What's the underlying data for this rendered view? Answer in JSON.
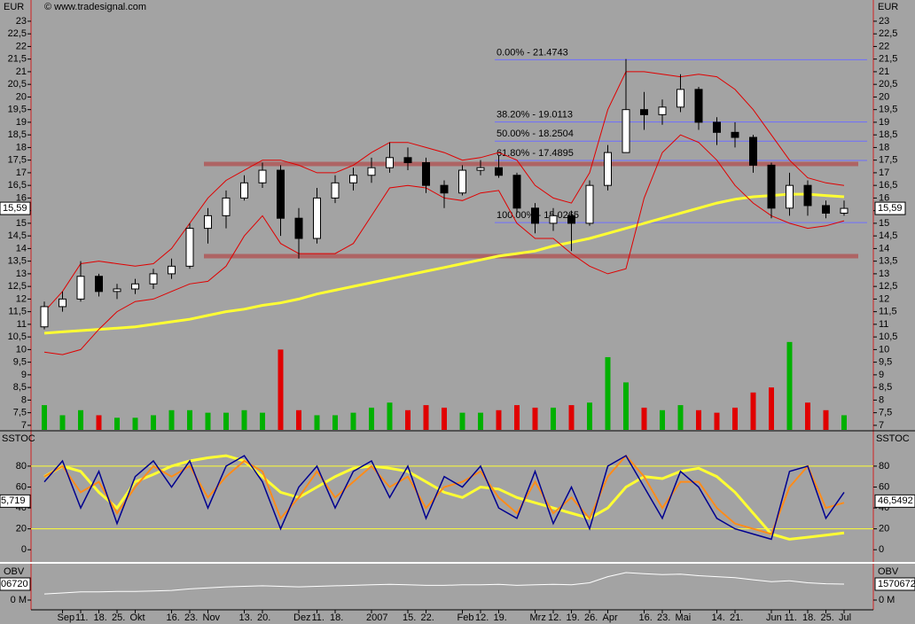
{
  "watermark": "© www.tradesignal.com",
  "chart_data": [
    {
      "type": "candlestick",
      "unit_label": "EUR",
      "categories": [
        null,
        "Sep",
        "11.",
        "18.",
        "25.",
        "Okt",
        null,
        "16.",
        "23.",
        "Nov",
        null,
        "13.",
        "20.",
        null,
        "Dez",
        "11.",
        "18.",
        null,
        "2007",
        null,
        "15.",
        "22.",
        null,
        "Feb",
        "12.",
        "19.",
        null,
        "Mrz",
        "12.",
        "19.",
        "26.",
        "Apr",
        null,
        "16.",
        "23.",
        "Mai",
        null,
        "14.",
        "21.",
        null,
        "Jun",
        "11.",
        "18.",
        "25.",
        "Jul"
      ],
      "open": [
        10.9,
        11.7,
        12.0,
        12.9,
        12.3,
        12.4,
        12.6,
        13.0,
        13.3,
        14.8,
        15.3,
        16.0,
        16.6,
        17.1,
        15.2,
        14.4,
        16.0,
        16.6,
        16.9,
        17.2,
        17.6,
        17.4,
        16.5,
        16.2,
        17.1,
        17.2,
        16.9,
        15.6,
        15.0,
        15.3,
        15.0,
        16.5,
        17.8,
        19.5,
        19.3,
        19.6,
        20.3,
        19.0,
        18.6,
        18.4,
        17.3,
        15.6,
        16.5,
        15.7,
        15.4
      ],
      "high": [
        11.9,
        12.3,
        13.5,
        13.0,
        12.6,
        12.8,
        13.2,
        13.6,
        15.0,
        15.6,
        16.3,
        16.9,
        17.4,
        17.3,
        15.6,
        16.4,
        16.9,
        17.2,
        17.6,
        18.2,
        18.0,
        17.6,
        16.7,
        17.3,
        17.5,
        17.7,
        17.0,
        15.8,
        15.6,
        15.5,
        16.7,
        18.1,
        21.5,
        20.2,
        19.9,
        20.9,
        20.4,
        19.2,
        19.0,
        18.5,
        17.4,
        17.0,
        16.7,
        15.9,
        15.9
      ],
      "low": [
        10.8,
        11.5,
        11.9,
        12.1,
        12.0,
        12.2,
        12.4,
        12.8,
        13.2,
        14.2,
        14.8,
        15.9,
        16.4,
        14.5,
        13.6,
        14.2,
        15.8,
        16.3,
        16.6,
        17.0,
        17.1,
        16.2,
        15.6,
        16.1,
        16.9,
        16.8,
        15.4,
        14.6,
        14.7,
        13.9,
        14.9,
        16.3,
        17.8,
        18.7,
        18.9,
        19.4,
        18.7,
        18.1,
        18.0,
        17.0,
        15.2,
        15.3,
        15.3,
        15.2,
        15.3
      ],
      "close": [
        11.7,
        12.0,
        12.9,
        12.3,
        12.4,
        12.6,
        13.0,
        13.3,
        14.8,
        15.3,
        16.0,
        16.6,
        17.1,
        15.2,
        14.4,
        16.0,
        16.6,
        16.9,
        17.2,
        17.6,
        17.4,
        16.5,
        16.2,
        17.1,
        17.2,
        16.9,
        15.6,
        15.0,
        15.3,
        15.0,
        16.5,
        17.8,
        19.5,
        19.3,
        19.6,
        20.3,
        19.0,
        18.6,
        18.4,
        17.3,
        15.6,
        16.5,
        15.7,
        15.4,
        15.59
      ],
      "candle_up_color": "#ffffff",
      "candle_down_color": "#000000",
      "last_label": "15,59",
      "overlays": [
        {
          "color": "#ffff33",
          "width": 3,
          "values": [
            10.65,
            10.7,
            10.75,
            10.8,
            10.85,
            10.9,
            11.0,
            11.1,
            11.2,
            11.35,
            11.5,
            11.6,
            11.75,
            11.85,
            12.0,
            12.2,
            12.35,
            12.5,
            12.65,
            12.8,
            12.95,
            13.1,
            13.25,
            13.4,
            13.55,
            13.7,
            13.8,
            13.9,
            14.1,
            14.25,
            14.4,
            14.6,
            14.8,
            15.0,
            15.2,
            15.4,
            15.6,
            15.8,
            15.95,
            16.05,
            16.1,
            16.15,
            16.15,
            16.1,
            16.05
          ]
        },
        {
          "color": "#e00000",
          "width": 1,
          "values": [
            11.5,
            12.3,
            13.4,
            13.5,
            13.4,
            13.3,
            13.4,
            14.0,
            15.0,
            16.0,
            16.7,
            17.1,
            17.5,
            17.5,
            17.3,
            17.0,
            17.0,
            17.3,
            17.8,
            18.2,
            18.2,
            18.0,
            17.8,
            17.5,
            17.6,
            17.8,
            17.5,
            16.5,
            16.0,
            15.8,
            17.0,
            19.5,
            21.0,
            21.0,
            20.9,
            20.8,
            20.9,
            20.8,
            20.3,
            19.5,
            18.5,
            17.5,
            16.8,
            16.6,
            16.5
          ]
        },
        {
          "color": "#e00000",
          "width": 1,
          "values": [
            9.9,
            9.8,
            10.0,
            10.8,
            11.5,
            11.9,
            12.0,
            12.3,
            12.6,
            12.7,
            13.3,
            14.5,
            15.3,
            14.2,
            13.8,
            13.8,
            13.8,
            14.2,
            15.3,
            16.4,
            16.5,
            16.4,
            16.0,
            15.9,
            16.2,
            16.3,
            15.0,
            14.4,
            14.4,
            13.8,
            13.3,
            13.0,
            13.2,
            16.0,
            17.8,
            18.5,
            18.2,
            17.5,
            16.5,
            15.8,
            15.3,
            15.0,
            14.8,
            14.9,
            15.1
          ]
        }
      ],
      "volume": {
        "colors": [
          "#00b000",
          "#e00000"
        ],
        "values": [
          7.8,
          7.4,
          7.6,
          7.4,
          7.3,
          7.3,
          7.4,
          7.6,
          7.6,
          7.5,
          7.5,
          7.6,
          7.5,
          10.0,
          7.6,
          7.4,
          7.4,
          7.5,
          7.7,
          7.9,
          7.6,
          7.8,
          7.7,
          7.5,
          7.5,
          7.6,
          7.8,
          7.7,
          7.7,
          7.8,
          7.9,
          9.7,
          8.7,
          7.7,
          7.6,
          7.8,
          7.6,
          7.5,
          7.7,
          8.3,
          8.5,
          10.3,
          7.9,
          7.6,
          7.4
        ]
      },
      "fib_color": "#6e6eff",
      "fib_levels": [
        {
          "value": 21.4743,
          "label": "0.00% - 21.4743"
        },
        {
          "value": 19.0113,
          "label": "38.20% - 19.0113"
        },
        {
          "value": 18.2504,
          "label": "50.00% - 18.2504"
        },
        {
          "value": 17.4895,
          "label": "61.80% - 17.4895"
        },
        {
          "value": 15.0265,
          "label": "100.00% - 15.0265"
        }
      ],
      "support_color": "#b05a5a",
      "support_levels": [
        17.35,
        13.7
      ],
      "ylim": [
        6.82,
        23.84
      ],
      "yticks": [
        7,
        {
          "value": 7.5,
          "label": "7,5"
        },
        8,
        {
          "value": 8.5,
          "label": "8,5"
        },
        9,
        {
          "value": 9.5,
          "label": "9,5"
        },
        10,
        {
          "value": 10.5,
          "label": "10,5"
        },
        11,
        {
          "value": 11.5,
          "label": "11,5"
        },
        12,
        {
          "value": 12.5,
          "label": "12,5"
        },
        13,
        {
          "value": 13.5,
          "label": "13,5"
        },
        14,
        {
          "value": 14.5,
          "label": "14,5"
        },
        15,
        {
          "value": 15.5,
          "label": "15,5"
        },
        16,
        {
          "value": 16.5,
          "label": "16,5"
        },
        17,
        {
          "value": 17.5,
          "label": "17,5"
        },
        18,
        {
          "value": 18.5,
          "label": "18,5"
        },
        19,
        {
          "value": 19.5,
          "label": "19,5"
        },
        20,
        {
          "value": 20.5,
          "label": "20,5"
        },
        21,
        {
          "value": 21.5,
          "label": "21,5"
        },
        22,
        {
          "value": 22.5,
          "label": "22,5"
        },
        23
      ]
    },
    {
      "type": "line",
      "title": "SSTOC",
      "series": [
        {
          "color": "#ffff33",
          "width": 3,
          "values": [
            70,
            80,
            75,
            55,
            40,
            65,
            72,
            80,
            85,
            88,
            90,
            85,
            70,
            55,
            50,
            60,
            70,
            78,
            80,
            78,
            75,
            65,
            55,
            50,
            60,
            58,
            50,
            45,
            40,
            35,
            30,
            40,
            60,
            70,
            68,
            75,
            78,
            70,
            55,
            35,
            15,
            10,
            12,
            14,
            16
          ]
        },
        {
          "color": "#ff8c1a",
          "width": 2,
          "values": [
            70,
            80,
            55,
            65,
            35,
            60,
            80,
            70,
            80,
            50,
            70,
            85,
            75,
            30,
            50,
            75,
            50,
            65,
            80,
            60,
            70,
            40,
            60,
            65,
            75,
            50,
            35,
            65,
            35,
            50,
            30,
            70,
            90,
            70,
            40,
            65,
            65,
            40,
            25,
            20,
            15,
            60,
            80,
            40,
            45
          ]
        },
        {
          "color": "#000090",
          "width": 1.5,
          "values": [
            65,
            85,
            40,
            75,
            25,
            70,
            85,
            60,
            85,
            40,
            80,
            90,
            65,
            20,
            60,
            80,
            40,
            75,
            85,
            50,
            80,
            30,
            70,
            60,
            80,
            40,
            30,
            75,
            25,
            60,
            20,
            80,
            90,
            60,
            30,
            75,
            60,
            30,
            20,
            15,
            10,
            75,
            80,
            30,
            55
          ]
        }
      ],
      "level_color": "#ffff33",
      "levels": [
        80,
        20
      ],
      "last_value": 46.5492,
      "last_label_right": "46,5492",
      "last_label_left": "5,719",
      "ylim": [
        -10,
        113
      ],
      "yticks": [
        0,
        20,
        40,
        60,
        80
      ]
    },
    {
      "type": "line",
      "title": "OBV",
      "series": [
        {
          "color": "#ffffff",
          "width": 1,
          "values": [
            600000,
            700000,
            800000,
            800000,
            850000,
            850000,
            900000,
            950000,
            1100000,
            1200000,
            1300000,
            1350000,
            1400000,
            1350000,
            1300000,
            1350000,
            1400000,
            1450000,
            1500000,
            1550000,
            1500000,
            1450000,
            1450000,
            1500000,
            1500000,
            1550000,
            1450000,
            1500000,
            1550000,
            1500000,
            1700000,
            2300000,
            2700000,
            2600000,
            2500000,
            2550000,
            2400000,
            2300000,
            2200000,
            2000000,
            1800000,
            1900000,
            1700000,
            1600000,
            1570672
          ]
        }
      ],
      "last_value": 1570672,
      "last_label_right": "1570672",
      "last_label_left": "06720",
      "ylim": [
        -960000,
        3400000
      ],
      "yticks": [
        {
          "value": 0,
          "label": "0 M"
        }
      ]
    }
  ]
}
